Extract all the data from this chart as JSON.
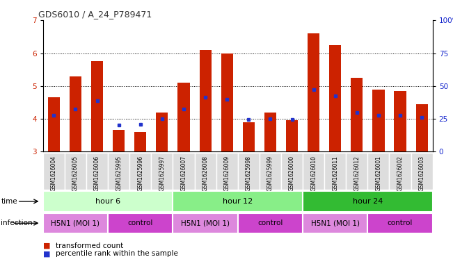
{
  "title": "GDS6010 / A_24_P789471",
  "samples": [
    "GSM1626004",
    "GSM1626005",
    "GSM1626006",
    "GSM1625995",
    "GSM1625996",
    "GSM1625997",
    "GSM1626007",
    "GSM1626008",
    "GSM1626009",
    "GSM1625998",
    "GSM1625999",
    "GSM1626000",
    "GSM1626010",
    "GSM1626011",
    "GSM1626012",
    "GSM1626001",
    "GSM1626002",
    "GSM1626003"
  ],
  "red_values": [
    4.65,
    5.3,
    5.75,
    3.65,
    3.6,
    4.2,
    5.1,
    6.1,
    6.0,
    3.9,
    4.2,
    3.95,
    6.6,
    6.25,
    5.25,
    4.9,
    4.85,
    4.45
  ],
  "blue_values": [
    4.1,
    4.3,
    4.55,
    3.8,
    3.82,
    4.0,
    4.3,
    4.65,
    4.6,
    3.97,
    4.0,
    3.97,
    4.9,
    4.7,
    4.2,
    4.1,
    4.1,
    4.05
  ],
  "ylim_left": [
    3,
    7
  ],
  "ylim_right": [
    0,
    100
  ],
  "yticks_left": [
    3,
    4,
    5,
    6,
    7
  ],
  "yticks_right": [
    0,
    25,
    50,
    75,
    100
  ],
  "bar_color": "#cc2200",
  "dot_color": "#2233cc",
  "time_colors": [
    "#ccffcc",
    "#88ee88",
    "#33bb33"
  ],
  "infection_colors": [
    "#dd88dd",
    "#cc44cc"
  ],
  "time_groups": [
    {
      "label": "hour 6",
      "start": 0,
      "end": 6
    },
    {
      "label": "hour 12",
      "start": 6,
      "end": 12
    },
    {
      "label": "hour 24",
      "start": 12,
      "end": 18
    }
  ],
  "infection_groups": [
    {
      "label": "H5N1 (MOI 1)",
      "start": 0,
      "end": 3
    },
    {
      "label": "control",
      "start": 3,
      "end": 6
    },
    {
      "label": "H5N1 (MOI 1)",
      "start": 6,
      "end": 9
    },
    {
      "label": "control",
      "start": 9,
      "end": 12
    },
    {
      "label": "H5N1 (MOI 1)",
      "start": 12,
      "end": 15
    },
    {
      "label": "control",
      "start": 15,
      "end": 18
    }
  ],
  "legend_red": "transformed count",
  "legend_blue": "percentile rank within the sample",
  "left_axis_color": "#cc2200",
  "right_axis_color": "#1122cc",
  "label_time": "time",
  "label_infection": "infection",
  "xticklabel_bg": "#dddddd",
  "bar_bottom": 3
}
